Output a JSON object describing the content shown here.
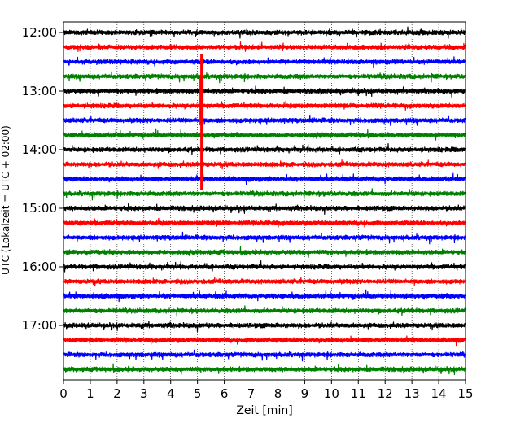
{
  "chart_data": {
    "type": "line",
    "title": "",
    "xlabel": "Zeit  [min]",
    "ylabel": "UTC (Lokalzeit = UTC + 02:00)",
    "xlim": [
      0,
      15
    ],
    "x_ticks": [
      0,
      1,
      2,
      3,
      4,
      5,
      6,
      7,
      8,
      9,
      10,
      11,
      12,
      13,
      14,
      15
    ],
    "x_tick_labels": [
      "0",
      "1",
      "2",
      "3",
      "4",
      "5",
      "6",
      "7",
      "8",
      "9",
      "10",
      "11",
      "12",
      "13",
      "14",
      "15"
    ],
    "y_tick_labels": [
      "12:00",
      "13:00",
      "14:00",
      "15:00",
      "16:00",
      "17:00"
    ],
    "grid": "vertical dotted",
    "legend": "none",
    "row_interval_minutes": 15,
    "color_cycle": [
      "#000000",
      "#ff0000",
      "#0000ff",
      "#008000"
    ],
    "series": [
      {
        "start": "12:00",
        "color": "#000000"
      },
      {
        "start": "12:15",
        "color": "#ff0000"
      },
      {
        "start": "12:30",
        "color": "#0000ff"
      },
      {
        "start": "12:45",
        "color": "#008000"
      },
      {
        "start": "13:00",
        "color": "#000000"
      },
      {
        "start": "13:15",
        "color": "#ff0000"
      },
      {
        "start": "13:30",
        "color": "#0000ff"
      },
      {
        "start": "13:45",
        "color": "#008000"
      },
      {
        "start": "14:00",
        "color": "#000000"
      },
      {
        "start": "14:15",
        "color": "#ff0000"
      },
      {
        "start": "14:30",
        "color": "#0000ff"
      },
      {
        "start": "14:45",
        "color": "#008000"
      },
      {
        "start": "15:00",
        "color": "#000000"
      },
      {
        "start": "15:15",
        "color": "#ff0000"
      },
      {
        "start": "15:30",
        "color": "#0000ff"
      },
      {
        "start": "15:45",
        "color": "#008000"
      },
      {
        "start": "16:00",
        "color": "#000000"
      },
      {
        "start": "16:15",
        "color": "#ff0000"
      },
      {
        "start": "16:30",
        "color": "#0000ff"
      },
      {
        "start": "16:45",
        "color": "#008000"
      },
      {
        "start": "17:00",
        "color": "#000000"
      },
      {
        "start": "17:15",
        "color": "#ff0000"
      },
      {
        "start": "17:30",
        "color": "#0000ff"
      },
      {
        "start": "17:45",
        "color": "#008000"
      }
    ],
    "event": {
      "description": "large amplitude signal",
      "minute": 5.15,
      "color": "#ff0000"
    }
  }
}
